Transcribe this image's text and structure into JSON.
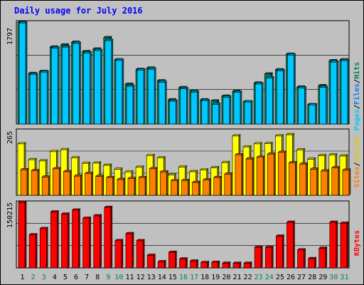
{
  "page": {
    "background": "#c0c0c0",
    "title": "Daily usage for July 2016"
  },
  "chart_data": [
    {
      "type": "bar",
      "title": "Daily usage for July 2016",
      "categories": [
        "1",
        "2",
        "3",
        "4",
        "5",
        "6",
        "7",
        "8",
        "9",
        "10",
        "11",
        "12",
        "13",
        "14",
        "15",
        "16",
        "17",
        "18",
        "19",
        "20",
        "21",
        "22",
        "23",
        "24",
        "25",
        "26",
        "27",
        "28",
        "29",
        "30",
        "31"
      ],
      "weekend_days": [
        "2",
        "3",
        "9",
        "10",
        "16",
        "17",
        "23",
        "24",
        "30",
        "31"
      ],
      "ymax_label": "1797",
      "ylim": [
        0,
        1797
      ],
      "axis_labels": {
        "pages": "Pages",
        "files": "Files",
        "hits": "Hits",
        "sep": "/"
      },
      "series": [
        {
          "name": "Hits",
          "color": "#00805c",
          "values": [
            1790,
            890,
            925,
            1355,
            1392,
            1440,
            1275,
            1320,
            1522,
            1130,
            700,
            960,
            985,
            760,
            425,
            640,
            580,
            425,
            405,
            490,
            575,
            390,
            720,
            880,
            955,
            1230,
            650,
            340,
            675,
            1115,
            1130
          ]
        },
        {
          "name": "Files",
          "color": "#00c8ff",
          "values": [
            1780,
            870,
            915,
            1335,
            1355,
            1420,
            1250,
            1295,
            1470,
            1120,
            665,
            950,
            965,
            735,
            400,
            620,
            560,
            410,
            345,
            470,
            555,
            385,
            705,
            810,
            935,
            1215,
            635,
            335,
            645,
            1090,
            1115
          ]
        },
        {
          "name": "Pages",
          "color": "#00c8ff",
          "values": [
            0,
            0,
            0,
            0,
            0,
            0,
            0,
            0,
            0,
            0,
            0,
            0,
            0,
            0,
            0,
            0,
            0,
            0,
            0,
            0,
            0,
            0,
            0,
            0,
            0,
            0,
            0,
            0,
            0,
            0,
            0
          ]
        }
      ]
    },
    {
      "type": "bar",
      "categories": [
        "1",
        "2",
        "3",
        "4",
        "5",
        "6",
        "7",
        "8",
        "9",
        "10",
        "11",
        "12",
        "13",
        "14",
        "15",
        "16",
        "17",
        "18",
        "19",
        "20",
        "21",
        "22",
        "23",
        "24",
        "25",
        "26",
        "27",
        "28",
        "29",
        "30",
        "31"
      ],
      "ymax_label": "265",
      "ylim": [
        0,
        265
      ],
      "axis_labels": {
        "sites": "Sites",
        "visits": "Visits",
        "sep": "/"
      },
      "series": [
        {
          "name": "Visits",
          "color": "#ffff00",
          "values": [
            210,
            145,
            140,
            178,
            186,
            152,
            130,
            131,
            122,
            106,
            95,
            114,
            162,
            152,
            82,
            115,
            96,
            103,
            112,
            133,
            242,
            197,
            210,
            211,
            242,
            247,
            185,
            147,
            161,
            164,
            160
          ]
        },
        {
          "name": "Sites",
          "color": "#ff8000",
          "values": [
            104,
            100,
            74,
            108,
            96,
            78,
            89,
            77,
            72,
            64,
            68,
            72,
            108,
            95,
            59,
            60,
            52,
            62,
            72,
            86,
            165,
            148,
            155,
            168,
            175,
            132,
            127,
            106,
            99,
            112,
            102
          ]
        }
      ]
    },
    {
      "type": "bar",
      "categories": [
        "1",
        "2",
        "3",
        "4",
        "5",
        "6",
        "7",
        "8",
        "9",
        "10",
        "11",
        "12",
        "13",
        "14",
        "15",
        "16",
        "17",
        "18",
        "19",
        "20",
        "21",
        "22",
        "23",
        "24",
        "25",
        "26",
        "27",
        "28",
        "29",
        "30",
        "31"
      ],
      "ymax_label": "150215",
      "ylim": [
        0,
        150215
      ],
      "axis_labels": {
        "kbytes": "KBytes"
      },
      "series": [
        {
          "name": "KBytes",
          "color": "#ff0000",
          "values": [
            150215,
            75565,
            89965,
            128100,
            123040,
            132345,
            113685,
            119285,
            138480,
            62290,
            78330,
            62130,
            28675,
            13935,
            35575,
            20310,
            15480,
            12260,
            12550,
            10485,
            10380,
            10380,
            46990,
            46990,
            72495,
            104370,
            41160,
            21070,
            44925,
            104370,
            102215
          ]
        }
      ]
    }
  ]
}
